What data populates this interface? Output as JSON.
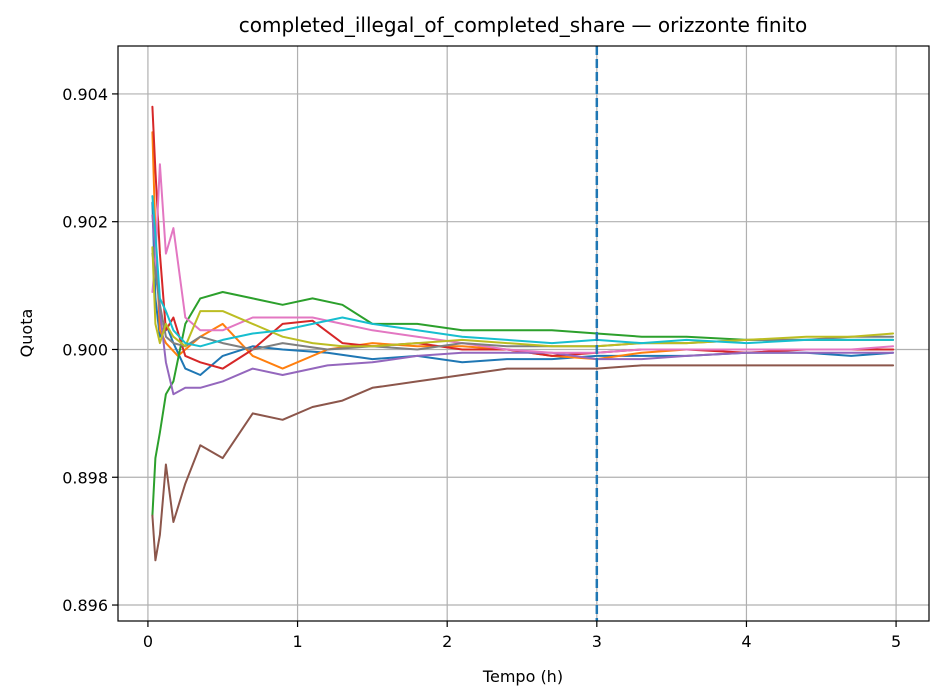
{
  "chart_data": {
    "type": "line",
    "title": "completed_illegal_of_completed_share — orizzonte finito",
    "xlabel": "Tempo (h)",
    "ylabel": "Quota",
    "xlim": [
      -0.2,
      5.22
    ],
    "ylim": [
      0.89575,
      0.90475
    ],
    "x_ticks": [
      0,
      1,
      2,
      3,
      4,
      5
    ],
    "x_tick_labels": [
      "0",
      "1",
      "2",
      "3",
      "4",
      "5"
    ],
    "y_ticks": [
      0.896,
      0.898,
      0.9,
      0.902,
      0.904
    ],
    "y_tick_labels": [
      "0.896",
      "0.898",
      "0.900",
      "0.902",
      "0.904"
    ],
    "grid": true,
    "vertical_line": {
      "x": 3.0,
      "style": "dashed",
      "color": "#1f77b4"
    },
    "series": [
      {
        "color": "#1f77b4",
        "points": [
          [
            0.03,
            0.9023
          ],
          [
            0.05,
            0.9008
          ],
          [
            0.08,
            0.9002
          ],
          [
            0.12,
            0.9004
          ],
          [
            0.17,
            0.9001
          ],
          [
            0.25,
            0.8997
          ],
          [
            0.35,
            0.8996
          ],
          [
            0.5,
            0.8999
          ],
          [
            0.7,
            0.90005
          ],
          [
            0.9,
            0.9
          ],
          [
            1.2,
            0.89995
          ],
          [
            1.5,
            0.89985
          ],
          [
            1.8,
            0.8999
          ],
          [
            2.1,
            0.8998
          ],
          [
            2.4,
            0.89985
          ],
          [
            2.7,
            0.89985
          ],
          [
            3.0,
            0.8999
          ],
          [
            3.3,
            0.8999
          ],
          [
            3.6,
            0.8999
          ],
          [
            4.0,
            0.89995
          ],
          [
            4.4,
            0.89995
          ],
          [
            4.7,
            0.8999
          ],
          [
            4.98,
            0.89995
          ]
        ]
      },
      {
        "color": "#ff7f0e",
        "points": [
          [
            0.03,
            0.9034
          ],
          [
            0.05,
            0.9018
          ],
          [
            0.08,
            0.9003
          ],
          [
            0.12,
            0.9001
          ],
          [
            0.2,
            0.8999
          ],
          [
            0.35,
            0.9002
          ],
          [
            0.5,
            0.9004
          ],
          [
            0.7,
            0.8999
          ],
          [
            0.9,
            0.8997
          ],
          [
            1.2,
            0.9
          ],
          [
            1.5,
            0.9001
          ],
          [
            1.8,
            0.90005
          ],
          [
            2.1,
            0.90005
          ],
          [
            2.4,
            0.9
          ],
          [
            2.7,
            0.8999
          ],
          [
            3.0,
            0.89985
          ],
          [
            3.3,
            0.89995
          ],
          [
            3.6,
            0.9
          ],
          [
            4.0,
            0.9
          ],
          [
            4.4,
            0.9
          ],
          [
            4.7,
            0.9
          ],
          [
            4.98,
            0.9
          ]
        ]
      },
      {
        "color": "#2ca02c",
        "points": [
          [
            0.03,
            0.8974
          ],
          [
            0.05,
            0.8983
          ],
          [
            0.08,
            0.8987
          ],
          [
            0.12,
            0.8993
          ],
          [
            0.17,
            0.8995
          ],
          [
            0.25,
            0.9004
          ],
          [
            0.35,
            0.9008
          ],
          [
            0.5,
            0.9009
          ],
          [
            0.7,
            0.9008
          ],
          [
            0.9,
            0.9007
          ],
          [
            1.1,
            0.9008
          ],
          [
            1.3,
            0.9007
          ],
          [
            1.5,
            0.9004
          ],
          [
            1.8,
            0.9004
          ],
          [
            2.1,
            0.9003
          ],
          [
            2.4,
            0.9003
          ],
          [
            2.7,
            0.9003
          ],
          [
            3.0,
            0.90025
          ],
          [
            3.3,
            0.9002
          ],
          [
            3.6,
            0.9002
          ],
          [
            4.0,
            0.90015
          ],
          [
            4.4,
            0.90015
          ],
          [
            4.7,
            0.90015
          ],
          [
            4.98,
            0.90015
          ]
        ]
      },
      {
        "color": "#d62728",
        "points": [
          [
            0.03,
            0.9038
          ],
          [
            0.05,
            0.9028
          ],
          [
            0.08,
            0.9015
          ],
          [
            0.12,
            0.9003
          ],
          [
            0.17,
            0.9005
          ],
          [
            0.25,
            0.8999
          ],
          [
            0.35,
            0.8998
          ],
          [
            0.5,
            0.8997
          ],
          [
            0.7,
            0.9
          ],
          [
            0.9,
            0.9004
          ],
          [
            1.1,
            0.90045
          ],
          [
            1.3,
            0.9001
          ],
          [
            1.5,
            0.90005
          ],
          [
            1.8,
            0.9001
          ],
          [
            2.1,
            0.9
          ],
          [
            2.4,
            0.9
          ],
          [
            2.7,
            0.8999
          ],
          [
            3.0,
            0.89995
          ],
          [
            3.3,
            0.9
          ],
          [
            3.6,
            0.9
          ],
          [
            4.0,
            0.89995
          ],
          [
            4.4,
            0.9
          ],
          [
            4.7,
            0.9
          ],
          [
            4.98,
            0.9
          ]
        ]
      },
      {
        "color": "#9467bd",
        "points": [
          [
            0.03,
            0.9021
          ],
          [
            0.05,
            0.9015
          ],
          [
            0.08,
            0.9006
          ],
          [
            0.12,
            0.8998
          ],
          [
            0.17,
            0.8993
          ],
          [
            0.25,
            0.8994
          ],
          [
            0.35,
            0.8994
          ],
          [
            0.5,
            0.8995
          ],
          [
            0.7,
            0.8997
          ],
          [
            0.9,
            0.8996
          ],
          [
            1.2,
            0.89975
          ],
          [
            1.5,
            0.8998
          ],
          [
            1.8,
            0.8999
          ],
          [
            2.1,
            0.89995
          ],
          [
            2.4,
            0.89995
          ],
          [
            2.7,
            0.89995
          ],
          [
            3.0,
            0.89985
          ],
          [
            3.3,
            0.89985
          ],
          [
            3.6,
            0.8999
          ],
          [
            4.0,
            0.89995
          ],
          [
            4.4,
            0.89995
          ],
          [
            4.7,
            0.89995
          ],
          [
            4.98,
            0.89995
          ]
        ]
      },
      {
        "color": "#8c564b",
        "points": [
          [
            0.03,
            0.8974
          ],
          [
            0.05,
            0.8967
          ],
          [
            0.08,
            0.8971
          ],
          [
            0.12,
            0.8982
          ],
          [
            0.17,
            0.8973
          ],
          [
            0.25,
            0.8979
          ],
          [
            0.35,
            0.8985
          ],
          [
            0.5,
            0.8983
          ],
          [
            0.7,
            0.899
          ],
          [
            0.9,
            0.8989
          ],
          [
            1.1,
            0.8991
          ],
          [
            1.3,
            0.8992
          ],
          [
            1.5,
            0.8994
          ],
          [
            1.8,
            0.8995
          ],
          [
            2.1,
            0.8996
          ],
          [
            2.4,
            0.8997
          ],
          [
            2.7,
            0.8997
          ],
          [
            3.0,
            0.8997
          ],
          [
            3.3,
            0.89975
          ],
          [
            3.6,
            0.89975
          ],
          [
            4.0,
            0.89975
          ],
          [
            4.4,
            0.89975
          ],
          [
            4.7,
            0.89975
          ],
          [
            4.98,
            0.89975
          ]
        ]
      },
      {
        "color": "#e377c2",
        "points": [
          [
            0.03,
            0.9009
          ],
          [
            0.05,
            0.9014
          ],
          [
            0.08,
            0.9029
          ],
          [
            0.12,
            0.9015
          ],
          [
            0.17,
            0.9019
          ],
          [
            0.25,
            0.9005
          ],
          [
            0.35,
            0.9003
          ],
          [
            0.5,
            0.9003
          ],
          [
            0.7,
            0.9005
          ],
          [
            0.9,
            0.9005
          ],
          [
            1.1,
            0.9005
          ],
          [
            1.3,
            0.9004
          ],
          [
            1.5,
            0.9003
          ],
          [
            1.8,
            0.9002
          ],
          [
            2.1,
            0.9001
          ],
          [
            2.4,
            0.9
          ],
          [
            2.7,
            0.89995
          ],
          [
            3.0,
            0.89995
          ],
          [
            3.3,
            0.9
          ],
          [
            3.6,
            0.9
          ],
          [
            4.0,
            0.9
          ],
          [
            4.4,
            0.9
          ],
          [
            4.7,
            0.9
          ],
          [
            4.98,
            0.90005
          ]
        ]
      },
      {
        "color": "#7f7f7f",
        "points": [
          [
            0.03,
            0.9015
          ],
          [
            0.05,
            0.9012
          ],
          [
            0.08,
            0.9007
          ],
          [
            0.12,
            0.9002
          ],
          [
            0.17,
            0.9001
          ],
          [
            0.25,
            0.90005
          ],
          [
            0.35,
            0.9002
          ],
          [
            0.5,
            0.9001
          ],
          [
            0.7,
            0.9
          ],
          [
            0.9,
            0.9001
          ],
          [
            1.2,
            0.9
          ],
          [
            1.5,
            0.90005
          ],
          [
            1.8,
            0.9
          ],
          [
            2.1,
            0.9001
          ],
          [
            2.4,
            0.90005
          ],
          [
            2.7,
            0.90005
          ],
          [
            3.0,
            0.90005
          ],
          [
            3.3,
            0.9001
          ],
          [
            3.6,
            0.9001
          ],
          [
            4.0,
            0.90015
          ],
          [
            4.4,
            0.90015
          ],
          [
            4.7,
            0.9002
          ],
          [
            4.98,
            0.9002
          ]
        ]
      },
      {
        "color": "#bcbd22",
        "points": [
          [
            0.03,
            0.9016
          ],
          [
            0.05,
            0.9004
          ],
          [
            0.08,
            0.9001
          ],
          [
            0.12,
            0.9004
          ],
          [
            0.17,
            0.9002
          ],
          [
            0.25,
            0.90005
          ],
          [
            0.35,
            0.9006
          ],
          [
            0.5,
            0.9006
          ],
          [
            0.7,
            0.9004
          ],
          [
            0.9,
            0.9002
          ],
          [
            1.1,
            0.9001
          ],
          [
            1.3,
            0.90005
          ],
          [
            1.5,
            0.90005
          ],
          [
            1.8,
            0.9001
          ],
          [
            2.1,
            0.90015
          ],
          [
            2.4,
            0.9001
          ],
          [
            2.7,
            0.90005
          ],
          [
            3.0,
            0.90005
          ],
          [
            3.3,
            0.9001
          ],
          [
            3.6,
            0.9001
          ],
          [
            4.0,
            0.90015
          ],
          [
            4.4,
            0.9002
          ],
          [
            4.7,
            0.9002
          ],
          [
            4.98,
            0.90025
          ]
        ]
      },
      {
        "color": "#17becf",
        "points": [
          [
            0.03,
            0.9024
          ],
          [
            0.05,
            0.9018
          ],
          [
            0.08,
            0.9008
          ],
          [
            0.12,
            0.9006
          ],
          [
            0.17,
            0.9003
          ],
          [
            0.25,
            0.9001
          ],
          [
            0.35,
            0.90005
          ],
          [
            0.5,
            0.90015
          ],
          [
            0.7,
            0.90025
          ],
          [
            0.9,
            0.9003
          ],
          [
            1.1,
            0.9004
          ],
          [
            1.3,
            0.9005
          ],
          [
            1.5,
            0.9004
          ],
          [
            1.8,
            0.9003
          ],
          [
            2.1,
            0.9002
          ],
          [
            2.4,
            0.90015
          ],
          [
            2.7,
            0.9001
          ],
          [
            3.0,
            0.90015
          ],
          [
            3.3,
            0.9001
          ],
          [
            3.6,
            0.90015
          ],
          [
            4.0,
            0.9001
          ],
          [
            4.4,
            0.90015
          ],
          [
            4.7,
            0.90015
          ],
          [
            4.98,
            0.90015
          ]
        ]
      }
    ]
  }
}
